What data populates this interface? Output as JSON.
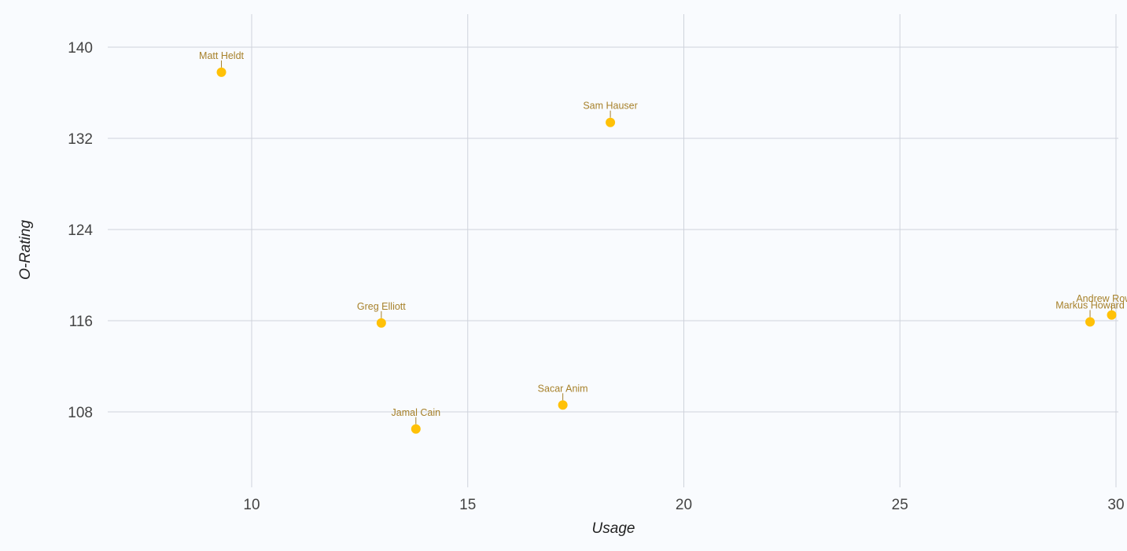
{
  "chart_data": {
    "type": "scatter",
    "xlabel": "Usage",
    "ylabel": "O-Rating",
    "xlim": [
      6.7,
      30.1
    ],
    "ylim": [
      101.3,
      142.8
    ],
    "xticks": [
      10,
      15,
      20,
      25,
      30
    ],
    "yticks": [
      108,
      116,
      124,
      132,
      140
    ],
    "grid": true,
    "point_color": "#ffc107",
    "label_color": "#a7812a",
    "points": [
      {
        "name": "Matt Heldt",
        "x": 9.3,
        "y": 137.8
      },
      {
        "name": "Sam Hauser",
        "x": 18.3,
        "y": 133.4
      },
      {
        "name": "Greg Elliott",
        "x": 13.0,
        "y": 115.8
      },
      {
        "name": "Markus Howard",
        "x": 29.4,
        "y": 115.9
      },
      {
        "name": "Andrew Rowsey",
        "x": 29.9,
        "y": 116.5
      },
      {
        "name": "Sacar Anim",
        "x": 17.2,
        "y": 108.6
      },
      {
        "name": "Jamal Cain",
        "x": 13.8,
        "y": 106.5
      }
    ]
  }
}
